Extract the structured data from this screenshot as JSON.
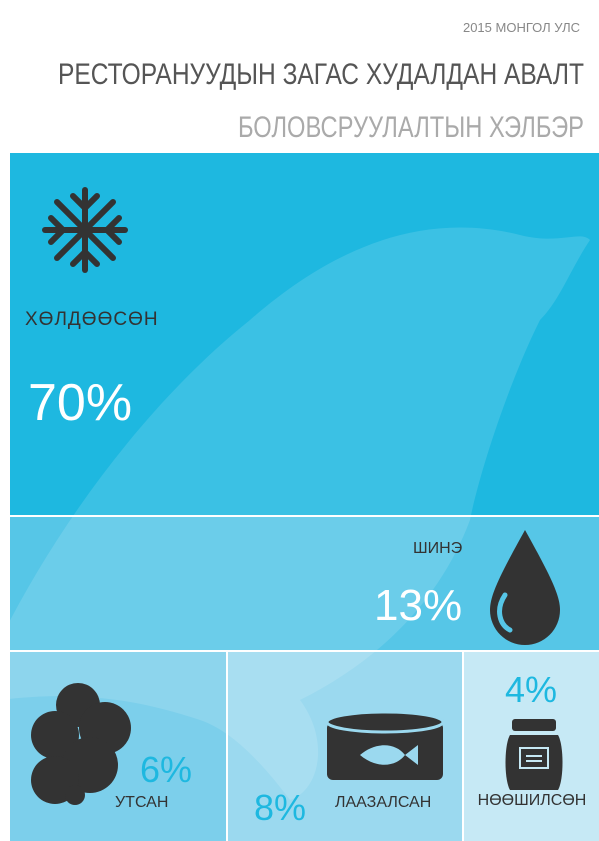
{
  "header": {
    "top": "2015 МОНГОЛ УЛС",
    "title": "РЕСТОРАНУУДЫН ЗАГАС ХУДАЛДАН АВАЛТ",
    "subtitle": "БОЛОВСРУУЛАЛТЫН ХЭЛБЭР"
  },
  "tiles": [
    {
      "label": "ХӨЛДӨӨСӨН",
      "value": "70%"
    },
    {
      "label": "ШИНЭ",
      "value": "13%"
    },
    {
      "label": "УТСАН",
      "value": "6%"
    },
    {
      "label": "ЛААЗАЛСАН",
      "value": "8%"
    },
    {
      "label": "НӨӨШИЛСӨН",
      "value": "4%"
    }
  ]
}
